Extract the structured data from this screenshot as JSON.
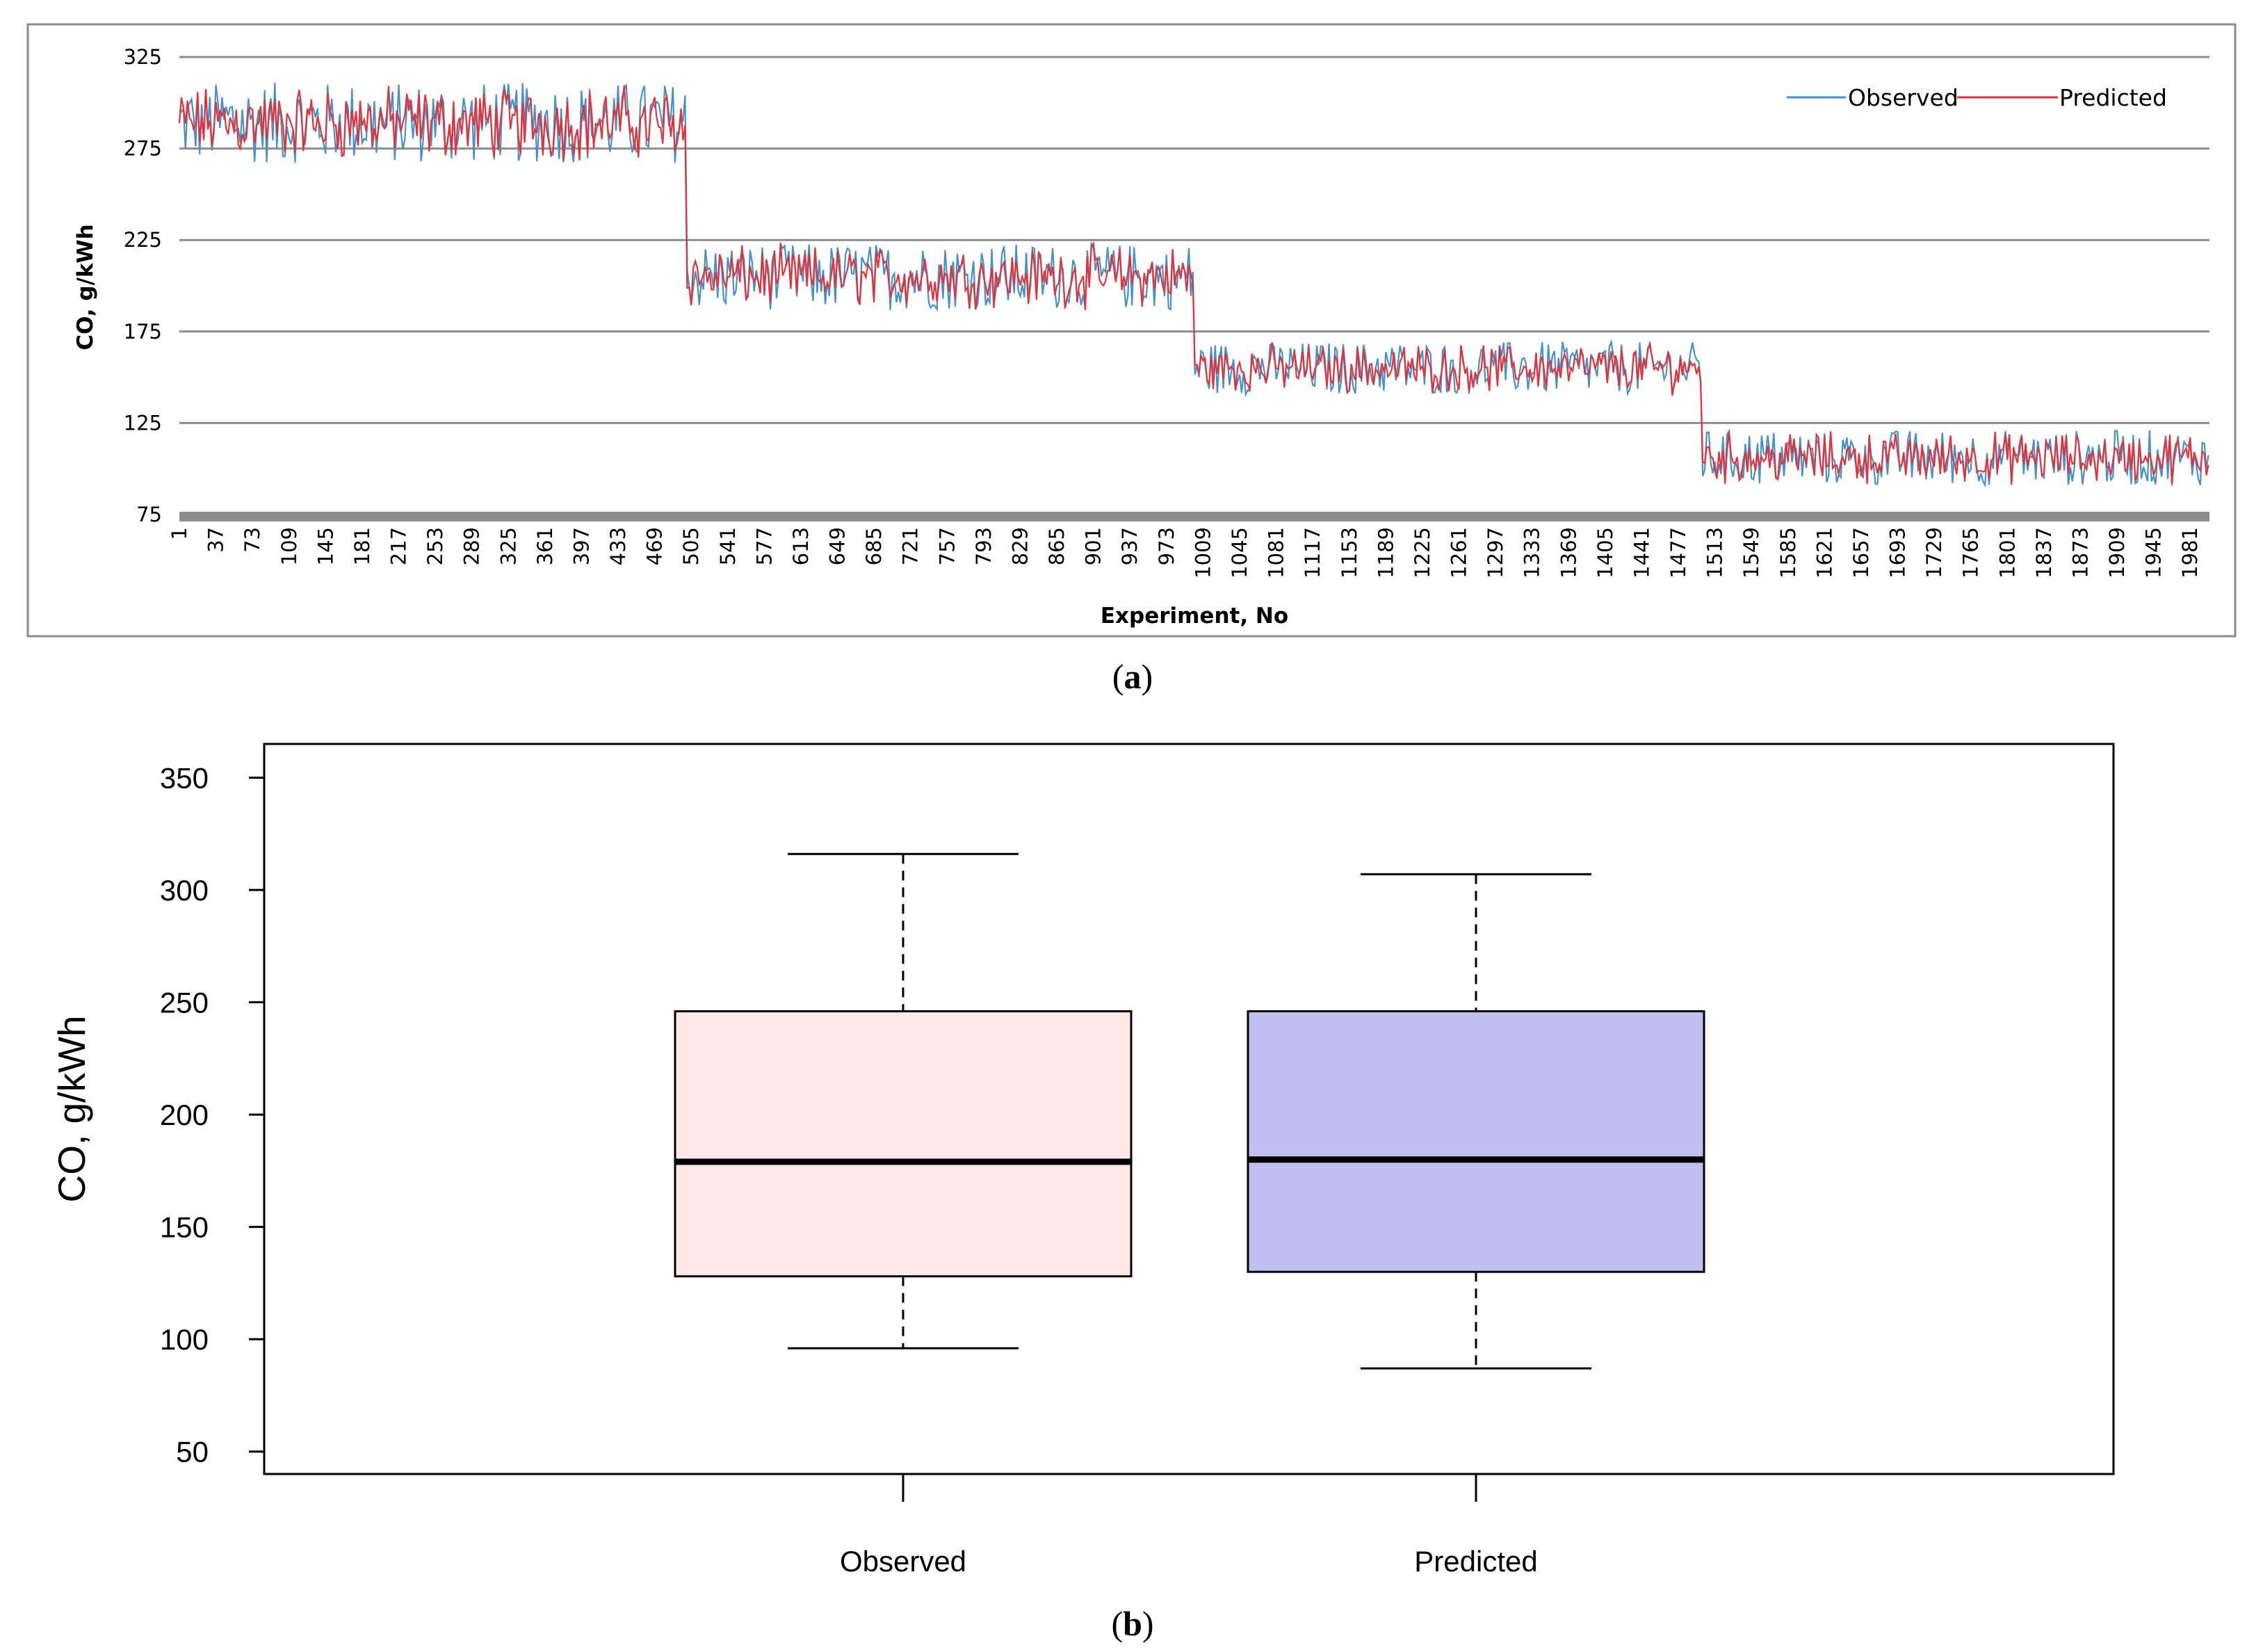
{
  "chart_data": [
    {
      "panel": "(a)",
      "type": "line",
      "xlabel": "Experiment, No",
      "ylabel": "CO, g/kWh",
      "ylim": [
        75,
        325
      ],
      "yticks": [
        75,
        125,
        175,
        225,
        275,
        325
      ],
      "xlim": [
        1,
        2000
      ],
      "xticks": [
        1,
        37,
        73,
        109,
        145,
        181,
        217,
        253,
        289,
        325,
        361,
        397,
        433,
        469,
        505,
        541,
        577,
        613,
        649,
        685,
        721,
        757,
        793,
        829,
        865,
        901,
        937,
        973,
        1009,
        1045,
        1081,
        1117,
        1153,
        1189,
        1225,
        1261,
        1297,
        1333,
        1369,
        1405,
        1441,
        1477,
        1513,
        1549,
        1585,
        1621,
        1657,
        1693,
        1729,
        1765,
        1801,
        1837,
        1873,
        1909,
        1945,
        1981
      ],
      "grid": "horizontal",
      "legend_position": "top-right",
      "series": [
        {
          "name": "Observed",
          "color": "#4a90c8"
        },
        {
          "name": "Predicted",
          "color": "#e0343c"
        }
      ],
      "segments": [
        {
          "x_range": [
            1,
            500
          ],
          "y_center": 289,
          "y_min": 263,
          "y_max": 315
        },
        {
          "x_range": [
            501,
            1000
          ],
          "y_center": 205,
          "y_min": 185,
          "y_max": 228
        },
        {
          "x_range": [
            1001,
            1500
          ],
          "y_center": 155,
          "y_min": 138,
          "y_max": 172
        },
        {
          "x_range": [
            1501,
            2000
          ],
          "y_center": 106,
          "y_min": 88,
          "y_max": 124
        }
      ]
    },
    {
      "panel": "(b)",
      "type": "box",
      "ylabel": "CO, g/kWh",
      "ylim": [
        40,
        365
      ],
      "yticks": [
        50,
        100,
        150,
        200,
        250,
        300,
        350
      ],
      "categories": [
        "Observed",
        "Predicted"
      ],
      "boxes": [
        {
          "name": "Observed",
          "min": 96,
          "q1": 128,
          "median": 179,
          "q3": 246,
          "max": 316,
          "color": "#fde8e6"
        },
        {
          "name": "Predicted",
          "min": 87,
          "q1": 130,
          "median": 180,
          "q3": 246,
          "max": 307,
          "color": "#c0c0f0"
        }
      ]
    }
  ],
  "captions": {
    "a": "a",
    "b": "b"
  }
}
